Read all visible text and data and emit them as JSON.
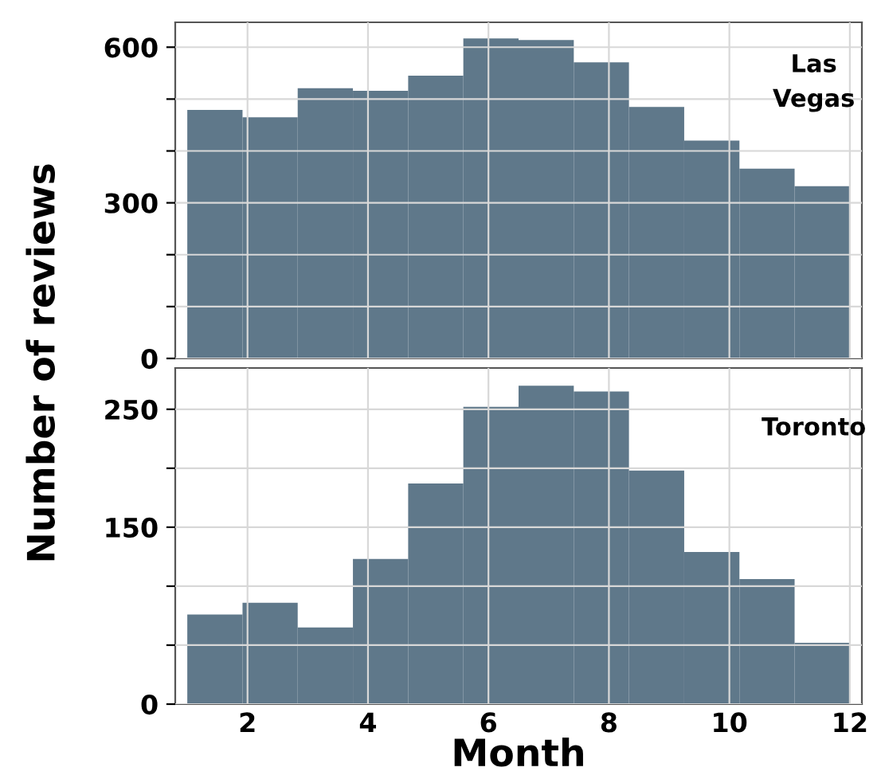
{
  "chart_data": [
    {
      "type": "histogram",
      "bins": [
        1,
        1.917,
        2.833,
        3.75,
        4.667,
        5.583,
        6.5,
        7.417,
        8.333,
        9.25,
        10.167,
        11.083,
        12
      ],
      "values": [
        479,
        465,
        521,
        516,
        545,
        617,
        614,
        571,
        485,
        420,
        366,
        332
      ],
      "color": "#5f788a",
      "xlim": [
        0.8,
        12.2
      ],
      "xticks": [
        2,
        4,
        6,
        8,
        10,
        12
      ],
      "ylim": [
        0,
        648
      ],
      "yticks": [
        0,
        {
          "value": 100,
          "label": null
        },
        {
          "value": 200,
          "label": null
        },
        300,
        {
          "value": 400,
          "label": null
        },
        {
          "value": 500,
          "label": null
        },
        600
      ],
      "tick_labels": "y",
      "grid": true,
      "annotations": [
        "Las\nVegas"
      ]
    },
    {
      "type": "histogram",
      "bins": [
        1,
        1.917,
        2.833,
        3.75,
        4.667,
        5.583,
        6.5,
        7.417,
        8.333,
        9.25,
        10.167,
        11.083,
        12
      ],
      "values": [
        76,
        86,
        65,
        123,
        187,
        252,
        270,
        265,
        198,
        129,
        106,
        52
      ],
      "color": "#5f788a",
      "xlim": [
        0.8,
        12.2
      ],
      "xticks": [
        2,
        4,
        6,
        8,
        10,
        12
      ],
      "ylim": [
        0,
        285
      ],
      "yticks": [
        0,
        {
          "value": 50,
          "label": null
        },
        {
          "value": 100,
          "label": null
        },
        150,
        {
          "value": 200,
          "label": null
        },
        250
      ],
      "grid": true,
      "xlabel": "Month",
      "ylabel": "Number of reviews",
      "annotations": [
        "Toronto"
      ]
    }
  ]
}
